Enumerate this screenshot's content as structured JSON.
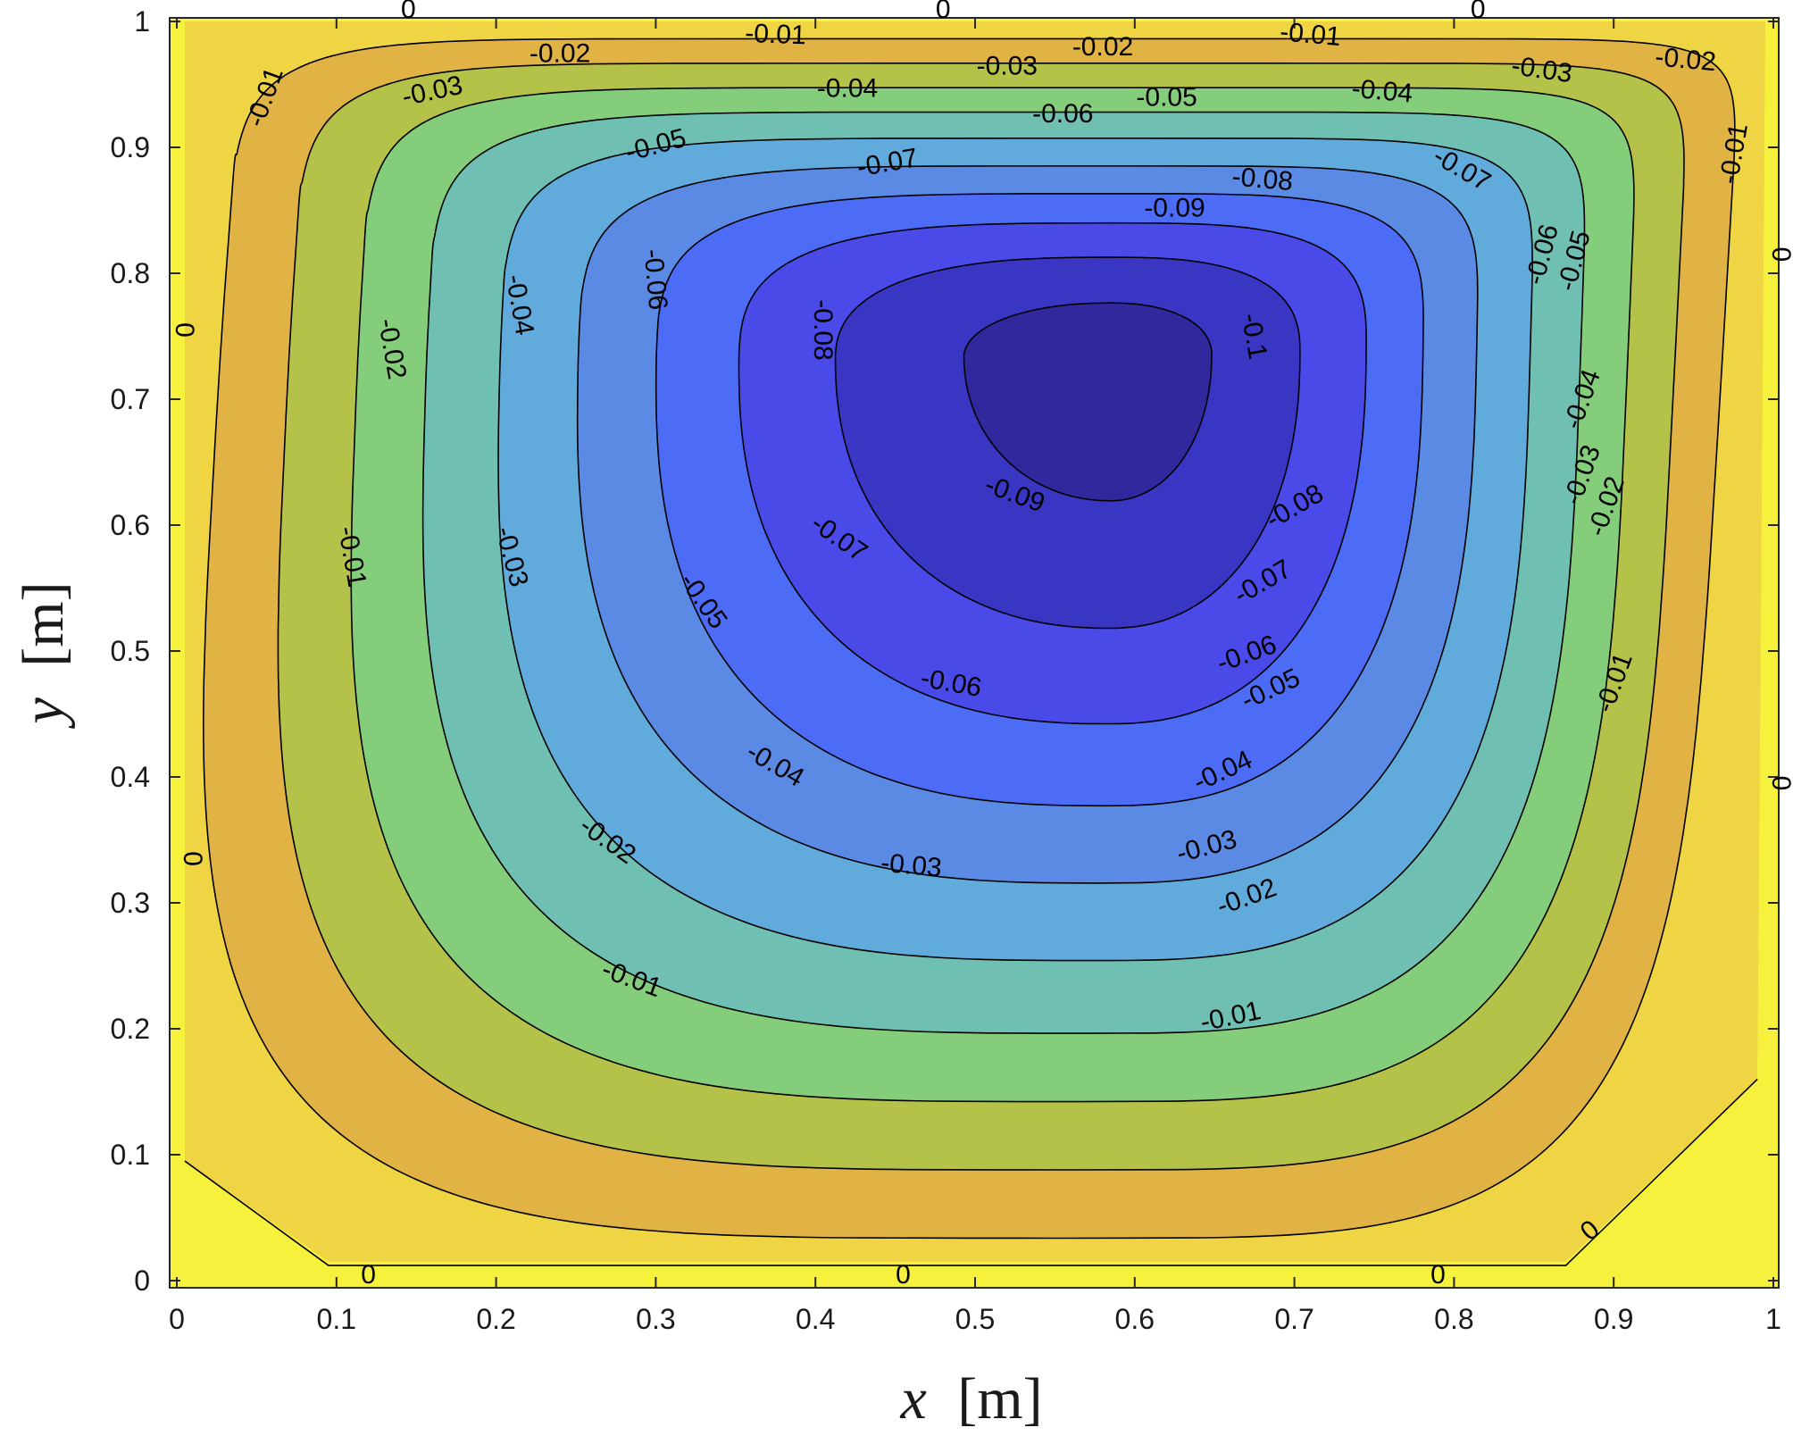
{
  "chart_data": {
    "type": "contour",
    "title": "",
    "xlabel_var": "x",
    "xlabel_unit": "[m]",
    "ylabel_var": "y",
    "ylabel_unit": "[m]",
    "xlim": [
      0,
      1
    ],
    "ylim": [
      0,
      1
    ],
    "x_ticks": [
      "0",
      "0.1",
      "0.2",
      "0.3",
      "0.4",
      "0.5",
      "0.6",
      "0.7",
      "0.8",
      "0.9",
      "1"
    ],
    "y_ticks": [
      "0",
      "0.1",
      "0.2",
      "0.3",
      "0.4",
      "0.5",
      "0.6",
      "0.7",
      "0.8",
      "0.9",
      "1"
    ],
    "vortex_center": {
      "x": 0.585,
      "y": 0.735
    },
    "min_value": -0.104,
    "colors": {
      "0": "#f6f13c",
      "-0.01": "#efd444",
      "-0.02": "#e0b344",
      "-0.03": "#b5c24a",
      "-0.04": "#84cd7a",
      "-0.05": "#6fbfb2",
      "-0.06": "#60abdb",
      "-0.07": "#5a8ae4",
      "-0.08": "#4d6cf6",
      "-0.09": "#4a4ae9",
      "-0.1": "#3a36c4",
      "-0.11": "#32289e"
    },
    "levels": [
      {
        "level": -0.01,
        "label": "-0.01",
        "t": 0.97
      },
      {
        "level": -0.02,
        "label": "-0.02",
        "t": 0.895
      },
      {
        "level": -0.03,
        "label": "-0.03",
        "t": 0.82
      },
      {
        "level": -0.04,
        "label": "-0.04",
        "t": 0.745
      },
      {
        "level": -0.05,
        "label": "-0.05",
        "t": 0.665
      },
      {
        "level": -0.06,
        "label": "-0.06",
        "t": 0.58
      },
      {
        "level": -0.07,
        "label": "-0.07",
        "t": 0.495
      },
      {
        "level": -0.08,
        "label": "-0.08",
        "t": 0.405
      },
      {
        "level": -0.09,
        "label": "-0.09",
        "t": 0.3
      },
      {
        "level": -0.1,
        "label": "-0.1",
        "t": 0.16
      }
    ],
    "contour_labels": [
      {
        "text": "0",
        "x": 0.145,
        "y": 1.01,
        "angle": 0
      },
      {
        "text": "0",
        "x": 0.48,
        "y": 1.01,
        "angle": 0
      },
      {
        "text": "0",
        "x": 0.815,
        "y": 1.01,
        "angle": 0
      },
      {
        "text": "-0.01",
        "x": 0.375,
        "y": 0.99,
        "angle": 2
      },
      {
        "text": "-0.01",
        "x": 0.71,
        "y": 0.99,
        "angle": 5
      },
      {
        "text": "-0.01",
        "x": 0.055,
        "y": 0.94,
        "angle": -70
      },
      {
        "text": "-0.02",
        "x": 0.24,
        "y": 0.975,
        "angle": 0
      },
      {
        "text": "-0.02",
        "x": 0.58,
        "y": 0.98,
        "angle": 0
      },
      {
        "text": "-0.02",
        "x": 0.945,
        "y": 0.97,
        "angle": 5
      },
      {
        "text": "-0.03",
        "x": 0.16,
        "y": 0.945,
        "angle": -12
      },
      {
        "text": "-0.03",
        "x": 0.52,
        "y": 0.965,
        "angle": 0
      },
      {
        "text": "-0.03",
        "x": 0.855,
        "y": 0.962,
        "angle": 8
      },
      {
        "text": "-0.04",
        "x": 0.42,
        "y": 0.947,
        "angle": 0
      },
      {
        "text": "-0.04",
        "x": 0.755,
        "y": 0.945,
        "angle": 5
      },
      {
        "text": "-0.05",
        "x": 0.62,
        "y": 0.94,
        "angle": 0
      },
      {
        "text": "-0.05",
        "x": 0.3,
        "y": 0.902,
        "angle": -15
      },
      {
        "text": "-0.06",
        "x": 0.555,
        "y": 0.927,
        "angle": 0
      },
      {
        "text": "-0.07",
        "x": 0.445,
        "y": 0.888,
        "angle": -10
      },
      {
        "text": "-0.07",
        "x": 0.805,
        "y": 0.883,
        "angle": 30
      },
      {
        "text": "-0.08",
        "x": 0.68,
        "y": 0.875,
        "angle": 5
      },
      {
        "text": "-0.09",
        "x": 0.625,
        "y": 0.852,
        "angle": 0
      },
      {
        "text": "-0.1",
        "x": 0.675,
        "y": 0.75,
        "angle": 80
      },
      {
        "text": "-0.01",
        "x": 0.975,
        "y": 0.895,
        "angle": -80
      },
      {
        "text": "0",
        "x": 1.005,
        "y": 0.815,
        "angle": 90
      },
      {
        "text": "-0.06",
        "x": 0.855,
        "y": 0.815,
        "angle": -75
      },
      {
        "text": "-0.05",
        "x": 0.875,
        "y": 0.81,
        "angle": -75
      },
      {
        "text": "-0.06",
        "x": 0.3,
        "y": 0.795,
        "angle": 85
      },
      {
        "text": "-0.04",
        "x": 0.215,
        "y": 0.775,
        "angle": 80
      },
      {
        "text": "-0.08",
        "x": 0.405,
        "y": 0.755,
        "angle": 90
      },
      {
        "text": "0",
        "x": 0.005,
        "y": 0.755,
        "angle": 90
      },
      {
        "text": "-0.02",
        "x": 0.135,
        "y": 0.74,
        "angle": 80
      },
      {
        "text": "-0.04",
        "x": 0.88,
        "y": 0.7,
        "angle": -70
      },
      {
        "text": "-0.09",
        "x": 0.525,
        "y": 0.625,
        "angle": 20
      },
      {
        "text": "-0.03",
        "x": 0.88,
        "y": 0.64,
        "angle": -70
      },
      {
        "text": "-0.08",
        "x": 0.7,
        "y": 0.615,
        "angle": -30
      },
      {
        "text": "-0.02",
        "x": 0.895,
        "y": 0.615,
        "angle": -70
      },
      {
        "text": "-0.07",
        "x": 0.415,
        "y": 0.59,
        "angle": 35
      },
      {
        "text": "-0.01",
        "x": 0.11,
        "y": 0.575,
        "angle": 80
      },
      {
        "text": "-0.03",
        "x": 0.21,
        "y": 0.575,
        "angle": 75
      },
      {
        "text": "-0.07",
        "x": 0.68,
        "y": 0.555,
        "angle": -30
      },
      {
        "text": "-0.05",
        "x": 0.33,
        "y": 0.54,
        "angle": 55
      },
      {
        "text": "-0.06",
        "x": 0.67,
        "y": 0.498,
        "angle": -20
      },
      {
        "text": "-0.06",
        "x": 0.485,
        "y": 0.475,
        "angle": 10
      },
      {
        "text": "-0.01",
        "x": 0.9,
        "y": 0.475,
        "angle": -70
      },
      {
        "text": "-0.05",
        "x": 0.685,
        "y": 0.47,
        "angle": -25
      },
      {
        "text": "-0.04",
        "x": 0.375,
        "y": 0.41,
        "angle": 30
      },
      {
        "text": "0",
        "x": 1.005,
        "y": 0.395,
        "angle": 90
      },
      {
        "text": "-0.04",
        "x": 0.655,
        "y": 0.405,
        "angle": -25
      },
      {
        "text": "-0.02",
        "x": 0.27,
        "y": 0.35,
        "angle": 35
      },
      {
        "text": "0",
        "x": 0.01,
        "y": 0.335,
        "angle": 90
      },
      {
        "text": "-0.03",
        "x": 0.46,
        "y": 0.33,
        "angle": 5
      },
      {
        "text": "-0.03",
        "x": 0.645,
        "y": 0.345,
        "angle": -15
      },
      {
        "text": "-0.02",
        "x": 0.67,
        "y": 0.305,
        "angle": -20
      },
      {
        "text": "-0.01",
        "x": 0.285,
        "y": 0.24,
        "angle": 20
      },
      {
        "text": "-0.01",
        "x": 0.66,
        "y": 0.21,
        "angle": -12
      },
      {
        "text": "0",
        "x": 0.885,
        "y": 0.04,
        "angle": -40
      },
      {
        "text": "0",
        "x": 0.12,
        "y": 0.005,
        "angle": 0
      },
      {
        "text": "0",
        "x": 0.455,
        "y": 0.005,
        "angle": 0
      },
      {
        "text": "0",
        "x": 0.79,
        "y": 0.005,
        "angle": 0
      }
    ]
  }
}
